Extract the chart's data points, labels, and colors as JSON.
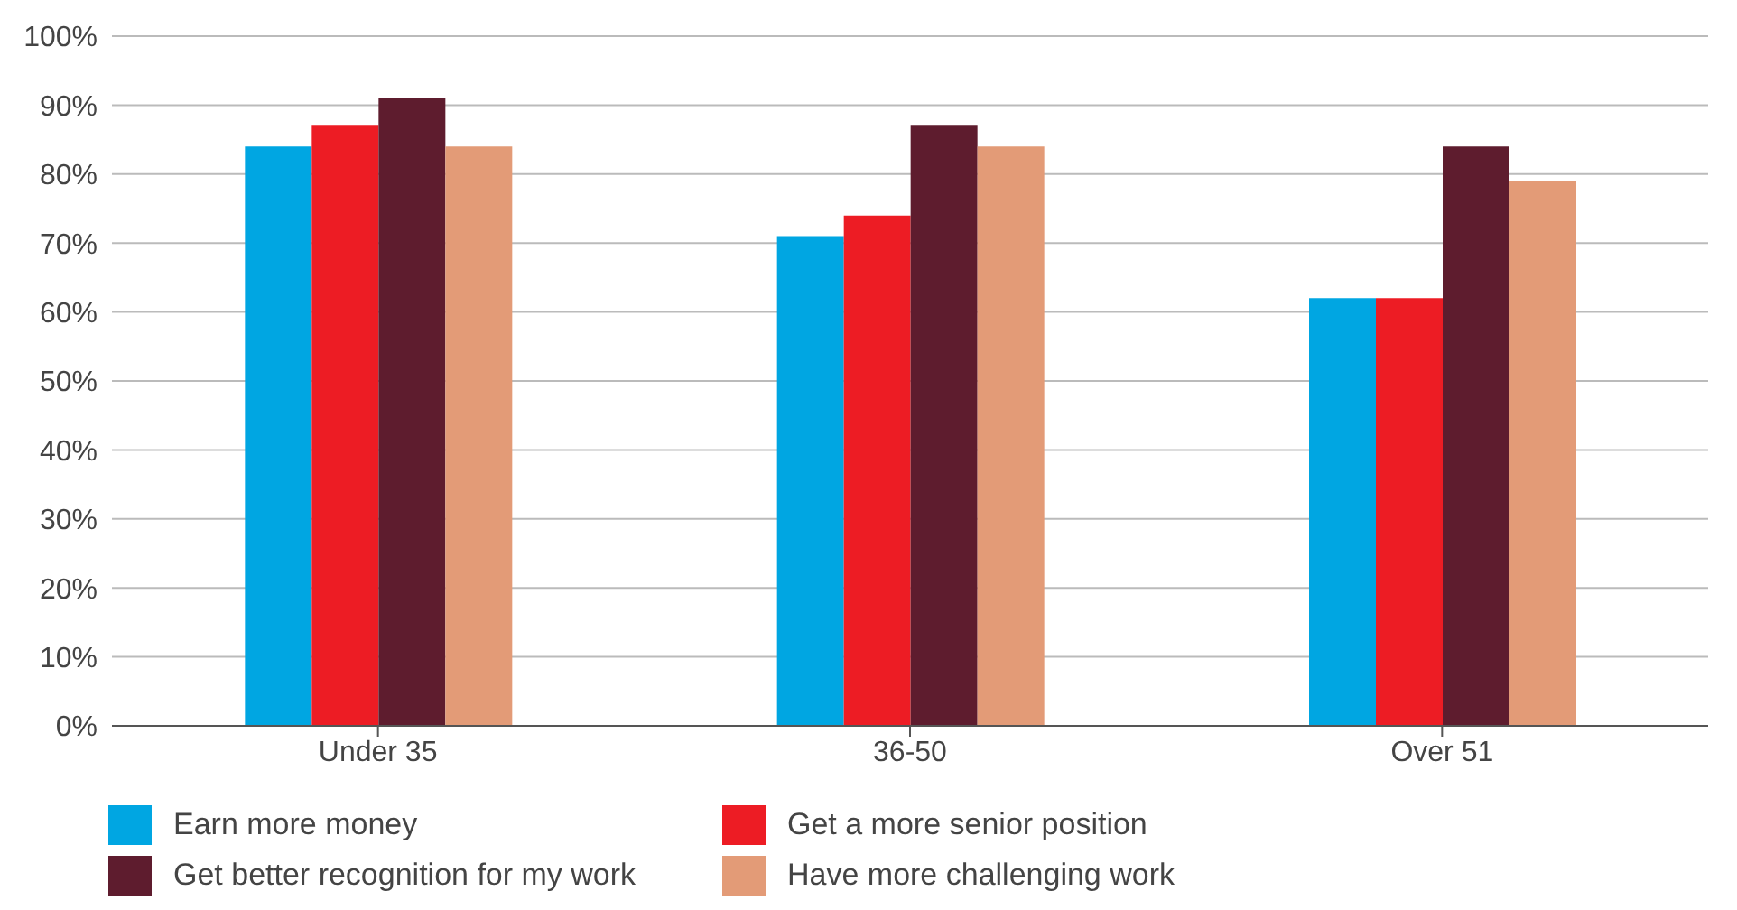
{
  "chart_data": {
    "type": "bar",
    "categories": [
      "Under 35",
      "36-50",
      "Over 51"
    ],
    "series": [
      {
        "name": "Earn more money",
        "color": "#00a6e2",
        "values": [
          84,
          71,
          62
        ]
      },
      {
        "name": "Get a more senior position",
        "color": "#ed1c24",
        "values": [
          87,
          74,
          62
        ]
      },
      {
        "name": "Get better recognition for my work",
        "color": "#5e1c2e",
        "values": [
          91,
          87,
          84
        ]
      },
      {
        "name": "Have more challenging work",
        "color": "#e39b77",
        "values": [
          84,
          84,
          79
        ]
      }
    ],
    "ylim": [
      0,
      100
    ],
    "yticks": [
      {
        "value": 0,
        "label": "0%"
      },
      {
        "value": 10,
        "label": "10%"
      },
      {
        "value": 20,
        "label": "20%"
      },
      {
        "value": 30,
        "label": "30%"
      },
      {
        "value": 40,
        "label": "40%"
      },
      {
        "value": 50,
        "label": "50%"
      },
      {
        "value": 60,
        "label": "60%"
      },
      {
        "value": 70,
        "label": "70%"
      },
      {
        "value": 80,
        "label": "80%"
      },
      {
        "value": 90,
        "label": "90%"
      },
      {
        "value": 100,
        "label": "100%"
      }
    ],
    "grid": "y",
    "legend": "bottom"
  }
}
